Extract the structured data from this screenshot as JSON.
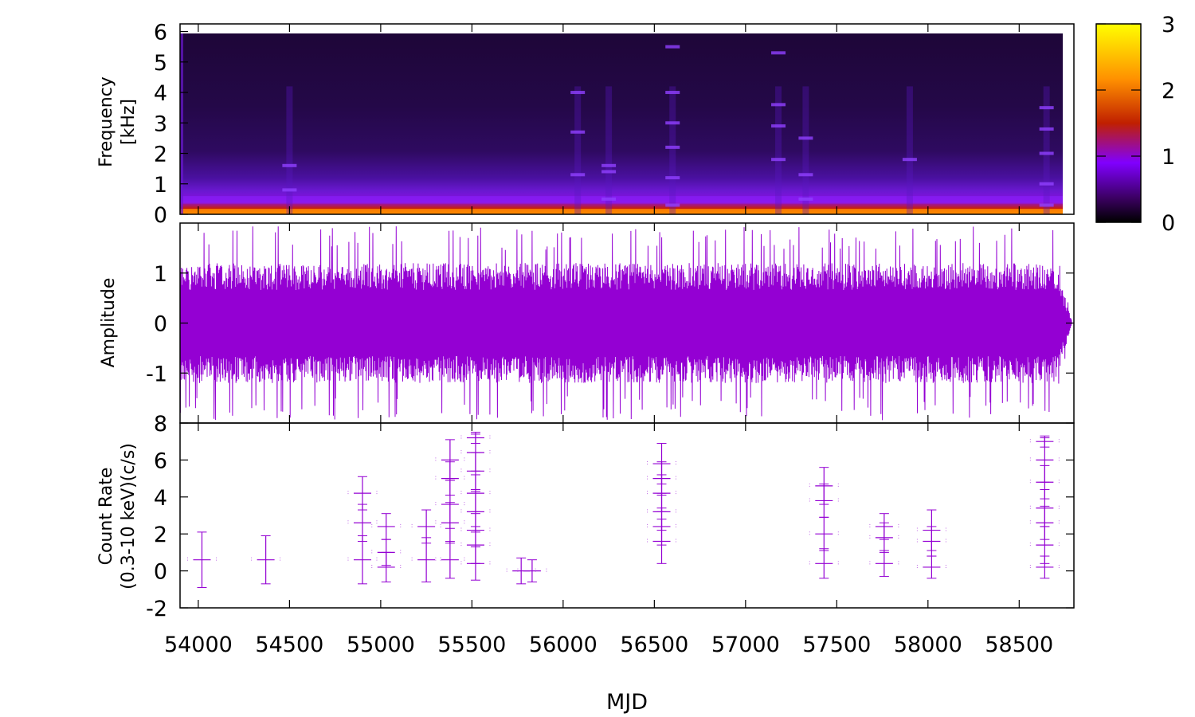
{
  "chart_data": {
    "type": "multi-panel",
    "xlabel": "MJD",
    "xlim": [
      53900,
      58800
    ],
    "x_ticks": [
      "54000",
      "54500",
      "55000",
      "55500",
      "56000",
      "56500",
      "57000",
      "57500",
      "58000",
      "58500"
    ],
    "spectrogram": {
      "type": "heatmap",
      "ylabel": [
        "Frequency",
        "[kHz]"
      ],
      "ylim": [
        0,
        6.25
      ],
      "y_ticks": [
        "0",
        "1",
        "2",
        "3",
        "4",
        "5",
        "6"
      ],
      "colorbar": {
        "min": 0,
        "max": 3,
        "ticks": [
          "0",
          "1",
          "2",
          "3"
        ],
        "colors": [
          "#000000",
          "#3a0060",
          "#8000ff",
          "#c02000",
          "#ff9000",
          "#ffff00"
        ]
      },
      "features": [
        {
          "x": 54500,
          "freqs": [
            0.8,
            1.6
          ]
        },
        {
          "x": 56080,
          "freqs": [
            1.3,
            2.7,
            4.0
          ]
        },
        {
          "x": 56250,
          "freqs": [
            0.5,
            1.4,
            1.6
          ]
        },
        {
          "x": 56600,
          "freqs": [
            0.3,
            1.2,
            2.2,
            3.0,
            4.0,
            5.5
          ]
        },
        {
          "x": 57180,
          "freqs": [
            1.8,
            2.9,
            3.6,
            5.3
          ]
        },
        {
          "x": 57330,
          "freqs": [
            0.5,
            1.3,
            2.5
          ]
        },
        {
          "x": 57900,
          "freqs": [
            1.8
          ]
        },
        {
          "x": 58650,
          "freqs": [
            0.3,
            1.0,
            2.0,
            2.8,
            3.5
          ]
        }
      ]
    },
    "waveform": {
      "type": "line",
      "ylabel": "Amplitude",
      "ylim": [
        -2,
        2
      ],
      "y_ticks": [
        "-1",
        "0",
        "1"
      ],
      "color": "#9400d3",
      "envelope": {
        "x_start": 53900,
        "x_end": 58790,
        "typical_amplitude": 1.2,
        "max_amplitude": 1.95
      }
    },
    "count_rate": {
      "type": "scatter",
      "ylabel": [
        "Count Rate",
        "(0.3-10 keV)(c/s)"
      ],
      "ylim": [
        -2,
        8
      ],
      "y_ticks": [
        "-2",
        "0",
        "2",
        "4",
        "6",
        "8"
      ],
      "color": "#9400d3",
      "points": [
        {
          "x": 54020,
          "y": [
            0.6
          ],
          "err": [
            1.5
          ]
        },
        {
          "x": 54370,
          "y": [
            0.6
          ],
          "err": [
            1.3
          ]
        },
        {
          "x": 54900,
          "y": [
            0.6,
            2.6,
            4.2
          ],
          "err": [
            1.3,
            1.0,
            0.9
          ]
        },
        {
          "x": 55030,
          "y": [
            0.2,
            1.0,
            2.4
          ],
          "err": [
            0.8,
            0.7,
            0.7
          ]
        },
        {
          "x": 55250,
          "y": [
            0.6,
            2.4
          ],
          "err": [
            1.2,
            0.9
          ]
        },
        {
          "x": 55380,
          "y": [
            0.6,
            2.6,
            3.6,
            5.0,
            6.0
          ],
          "err": [
            1.0,
            1.1,
            1.3,
            0.9,
            1.1
          ]
        },
        {
          "x": 55520,
          "y": [
            0.4,
            1.4,
            2.2,
            3.2,
            4.2,
            5.4,
            6.4,
            7.2
          ],
          "err": [
            0.9,
            1.0,
            0.9,
            1.1,
            1.0,
            1.0,
            1.0,
            0.3
          ]
        },
        {
          "x": 55770,
          "y": [
            0.0
          ],
          "err": [
            0.7
          ]
        },
        {
          "x": 55830,
          "y": [
            0.0
          ],
          "err": [
            0.6
          ]
        },
        {
          "x": 56540,
          "y": [
            1.6,
            2.4,
            3.2,
            4.2,
            5.0,
            5.8
          ],
          "err": [
            1.2,
            1.0,
            1.0,
            1.0,
            0.9,
            1.1
          ]
        },
        {
          "x": 57430,
          "y": [
            0.4,
            2.0,
            3.8,
            4.6
          ],
          "err": [
            0.8,
            0.9,
            0.9,
            1.0
          ]
        },
        {
          "x": 57760,
          "y": [
            0.4,
            1.8,
            2.4
          ],
          "err": [
            0.7,
            0.8,
            0.7
          ]
        },
        {
          "x": 58020,
          "y": [
            0.2,
            1.6,
            2.2
          ],
          "err": [
            0.6,
            0.8,
            1.1
          ]
        },
        {
          "x": 58640,
          "y": [
            0.2,
            1.4,
            2.6,
            3.4,
            4.8,
            6.0,
            7.0
          ],
          "err": [
            0.6,
            1.0,
            0.9,
            1.0,
            0.9,
            1.2,
            0.3
          ]
        }
      ]
    }
  }
}
